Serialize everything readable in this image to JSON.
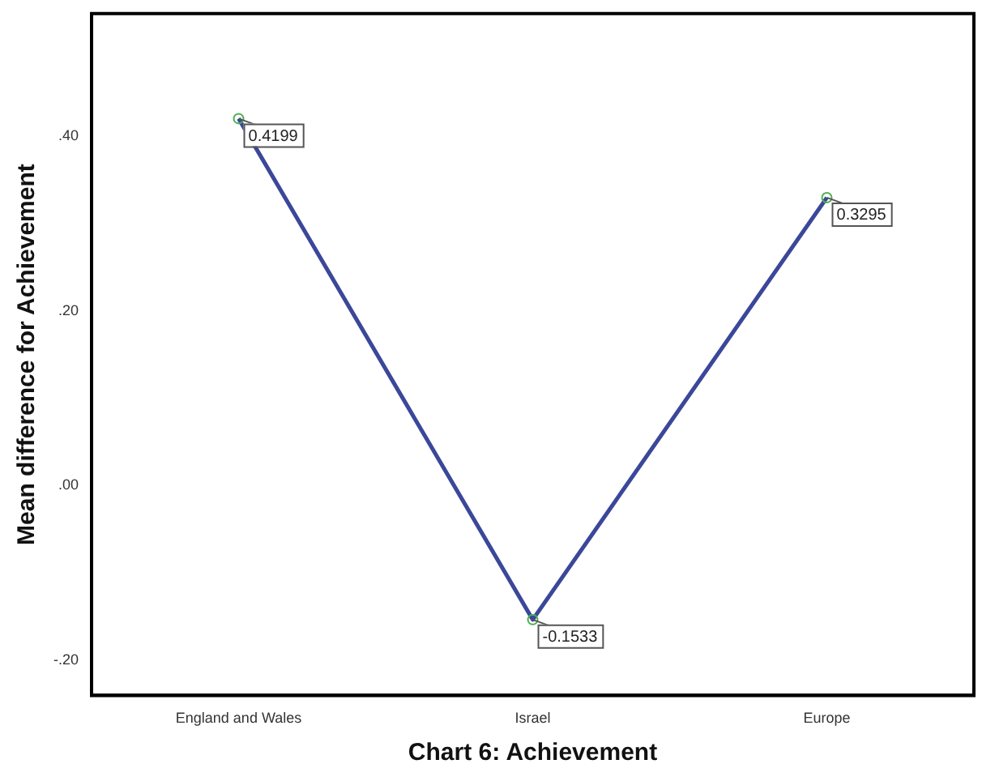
{
  "chart_data": {
    "type": "line",
    "xlabel": "Chart 6: Achievement",
    "ylabel": "Mean difference for Achievement",
    "categories": [
      "England and Wales",
      "Israel",
      "Europe"
    ],
    "series": [
      {
        "color": "#3b4799",
        "values": [
          0.4199,
          -0.1533,
          0.3295
        ]
      }
    ],
    "ylim": [
      -0.24,
      0.54
    ],
    "yticks": [
      {
        "value": -0.2,
        "label": "-.20"
      },
      {
        "value": 0,
        "label": ".00"
      },
      {
        "value": 0.2,
        "label": ".20"
      },
      {
        "value": 0.4,
        "label": ".40"
      }
    ],
    "data_labels": true,
    "marker": "circle",
    "grid": false,
    "legend": false
  }
}
